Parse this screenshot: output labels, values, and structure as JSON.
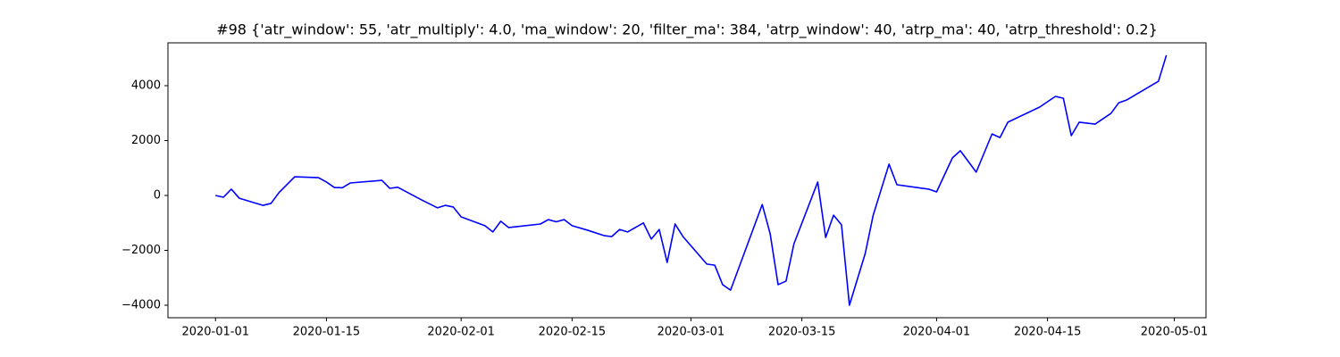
{
  "chart_data": {
    "type": "line",
    "title": "#98 {'atr_window': 55, 'atr_multiply': 4.0, 'ma_window': 20, 'filter_ma': 384, 'atrp_window': 40, 'atrp_ma': 40, 'atrp_threshold': 0.2}",
    "x": [
      "2020-01-01",
      "2020-01-02",
      "2020-01-03",
      "2020-01-04",
      "2020-01-07",
      "2020-01-08",
      "2020-01-09",
      "2020-01-11",
      "2020-01-14",
      "2020-01-15",
      "2020-01-16",
      "2020-01-17",
      "2020-01-18",
      "2020-01-22",
      "2020-01-23",
      "2020-01-24",
      "2020-01-27",
      "2020-01-29",
      "2020-01-30",
      "2020-01-31",
      "2020-02-01",
      "2020-02-04",
      "2020-02-05",
      "2020-02-06",
      "2020-02-07",
      "2020-02-11",
      "2020-02-12",
      "2020-02-13",
      "2020-02-14",
      "2020-02-15",
      "2020-02-17",
      "2020-02-19",
      "2020-02-20",
      "2020-02-21",
      "2020-02-22",
      "2020-02-24",
      "2020-02-25",
      "2020-02-26",
      "2020-02-27",
      "2020-02-28",
      "2020-02-29",
      "2020-03-03",
      "2020-03-04",
      "2020-03-05",
      "2020-03-06",
      "2020-03-10",
      "2020-03-11",
      "2020-03-12",
      "2020-03-13",
      "2020-03-14",
      "2020-03-17",
      "2020-03-18",
      "2020-03-19",
      "2020-03-20",
      "2020-03-21",
      "2020-03-23",
      "2020-03-24",
      "2020-03-26",
      "2020-03-27",
      "2020-03-31",
      "2020-04-01",
      "2020-04-03",
      "2020-04-04",
      "2020-04-06",
      "2020-04-08",
      "2020-04-09",
      "2020-04-10",
      "2020-04-14",
      "2020-04-16",
      "2020-04-17",
      "2020-04-18",
      "2020-04-19",
      "2020-04-21",
      "2020-04-23",
      "2020-04-24",
      "2020-04-25",
      "2020-04-29",
      "2020-04-30"
    ],
    "series": [
      {
        "color": "#0000ff",
        "values": [
          0,
          -65,
          230,
          -100,
          -360,
          -290,
          100,
          680,
          650,
          490,
          290,
          280,
          455,
          550,
          260,
          300,
          -160,
          -450,
          -360,
          -420,
          -780,
          -1100,
          -1330,
          -940,
          -1170,
          -1040,
          -880,
          -960,
          -880,
          -1100,
          -1270,
          -1460,
          -1500,
          -1240,
          -1330,
          -1000,
          -1590,
          -1240,
          -2440,
          -1040,
          -1500,
          -2500,
          -2540,
          -3250,
          -3450,
          -330,
          -1400,
          -3250,
          -3120,
          -1760,
          490,
          -1530,
          -720,
          -1070,
          -4000,
          -2110,
          -720,
          1140,
          390,
          230,
          130,
          1370,
          1630,
          850,
          2240,
          2110,
          2670,
          3220,
          3610,
          3540,
          2180,
          2670,
          2600,
          2990,
          3380,
          3480,
          4160,
          5110
        ]
      }
    ],
    "xlim": [
      "2019-12-26",
      "2020-05-05"
    ],
    "xticks": [
      "2020-01-01",
      "2020-01-15",
      "2020-02-01",
      "2020-02-15",
      "2020-03-01",
      "2020-03-15",
      "2020-04-01",
      "2020-04-15",
      "2020-05-01"
    ],
    "ylim": [
      -4455,
      5561
    ],
    "yticks": [
      {
        "value": -4000,
        "label": "−4000"
      },
      {
        "value": -2000,
        "label": "−2000"
      },
      0,
      2000,
      4000
    ],
    "grid": false
  }
}
